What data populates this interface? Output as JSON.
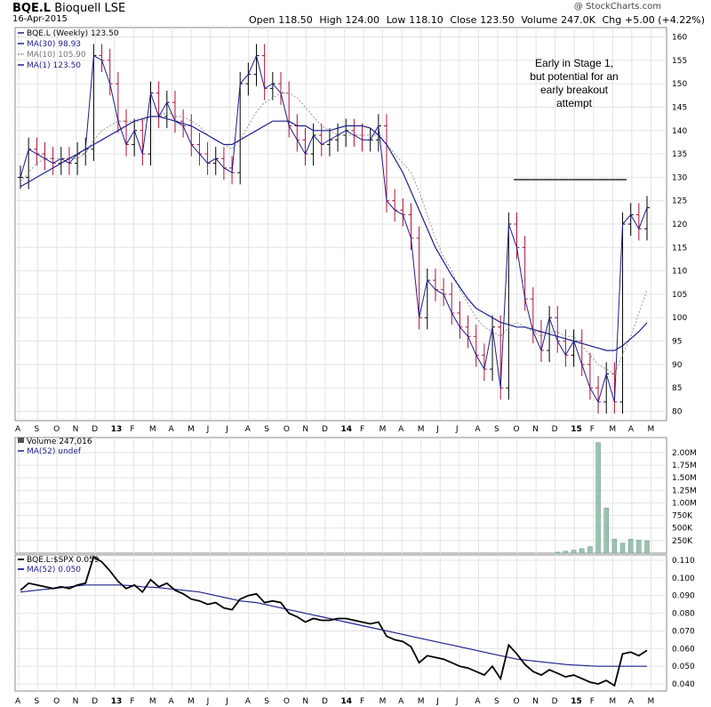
{
  "header": {
    "ticker": "BQE.L",
    "name": "Bioquell",
    "exchange": "LSE",
    "date": "16-Apr-2015",
    "open_label": "Open",
    "open": "118.50",
    "high_label": "High",
    "high": "124.00",
    "low_label": "Low",
    "low": "118.10",
    "close_label": "Close",
    "close": "123.50",
    "volume_label": "Volume",
    "volume": "247.0K",
    "chg_label": "Chg",
    "chg": "+5.00 (+4.22%)",
    "copyright": "@ StockCharts.com"
  },
  "colors": {
    "up_bar": "#000000",
    "down_bar": "#b0103a",
    "ma30": "#1f1f8f",
    "ma10": "#999999",
    "volume": "#9cc2b0",
    "ratio": "#000000",
    "grid": "#e3e3e3"
  },
  "chart_data": [
    {
      "type": "ohlc",
      "legend": [
        {
          "label": "BQE.L (Weekly) 123.50",
          "icon": "ohlc-icon"
        },
        {
          "label": "MA(30) 98.93",
          "icon": "line-solid"
        },
        {
          "label": "MA(10) 105.90",
          "icon": "line-dotted"
        },
        {
          "label": "MA(1) 123.50",
          "icon": "line-solid"
        }
      ],
      "ylim": [
        78,
        162
      ],
      "yticks": [
        80,
        85,
        90,
        95,
        100,
        105,
        110,
        115,
        120,
        125,
        130,
        135,
        140,
        145,
        150,
        155,
        160
      ],
      "x_months": [
        "A",
        "S",
        "O",
        "N",
        "D",
        "13",
        "F",
        "M",
        "A",
        "M",
        "J",
        "J",
        "A",
        "S",
        "O",
        "N",
        "D",
        "14",
        "F",
        "M",
        "A",
        "M",
        "J",
        "J",
        "A",
        "S",
        "O",
        "N",
        "D",
        "15",
        "F",
        "M",
        "A",
        "M"
      ],
      "price_close": [
        130,
        136,
        135,
        134,
        133,
        134,
        133,
        135,
        136,
        156,
        155,
        150,
        142,
        137,
        140,
        135,
        148,
        143,
        146,
        142,
        141,
        137,
        135,
        133,
        134,
        132,
        131,
        150,
        152,
        156,
        149,
        150,
        148,
        141,
        138,
        135,
        139,
        137,
        138,
        139,
        140,
        139,
        138,
        138,
        141,
        125,
        123,
        122,
        117,
        100,
        108,
        106,
        105,
        101,
        98,
        96,
        92,
        89,
        98,
        85,
        120,
        115,
        104,
        97,
        93,
        100,
        95,
        92,
        95,
        90,
        85,
        82,
        88,
        82,
        120,
        122,
        119,
        123.5
      ],
      "ma30": [
        128,
        129,
        130,
        131,
        132,
        133,
        134,
        135,
        136,
        137,
        138,
        139,
        140,
        141,
        142,
        142.5,
        143,
        143,
        142.5,
        142,
        141.5,
        141,
        140,
        139,
        138,
        137,
        137,
        138,
        139,
        140,
        141,
        142,
        142,
        142,
        141,
        141,
        140,
        140,
        140,
        140.5,
        141,
        141,
        141,
        140.5,
        139,
        137,
        134,
        131,
        127,
        123,
        119,
        115,
        112,
        109,
        106.5,
        104,
        102,
        101,
        100,
        99,
        98.5,
        98,
        98,
        97.5,
        97,
        96.5,
        96,
        95.5,
        95,
        94.5,
        94,
        93.5,
        93,
        93,
        94,
        95.5,
        97,
        98.93
      ],
      "ma10": [
        129,
        131,
        133,
        134,
        134,
        134,
        134,
        134,
        135,
        138,
        140,
        141,
        142,
        142,
        142,
        142,
        143,
        143,
        144,
        143,
        143,
        142,
        141,
        139,
        138,
        137,
        136,
        138,
        141,
        144,
        146,
        147,
        148,
        148,
        147,
        145,
        143,
        141,
        140,
        139,
        139,
        139,
        139,
        139,
        139,
        137,
        135,
        133,
        131,
        127,
        122,
        117,
        113,
        110,
        106,
        103,
        100,
        98,
        97,
        96,
        98,
        99,
        98,
        97,
        96,
        97,
        97,
        96,
        96,
        94,
        92,
        90,
        89,
        88,
        92,
        96,
        101,
        105.9
      ]
    },
    {
      "type": "bar",
      "legend": [
        {
          "label": "Volume 247,016",
          "icon": "volume-icon"
        },
        {
          "label": "MA(52) undef",
          "icon": "line-solid"
        }
      ],
      "ylim": [
        0,
        2300000
      ],
      "yticks": [
        250000,
        500000,
        750000,
        1000000,
        1250000,
        1500000,
        1750000,
        2000000
      ],
      "ytick_labels": [
        "250K",
        "500K",
        "750K",
        "1.00M",
        "1.25M",
        "1.50M",
        "1.75M",
        "2.00M"
      ],
      "values": [
        20000,
        40000,
        60000,
        90000,
        130000,
        2200000,
        900000,
        280000,
        200000,
        280000,
        260000,
        247016
      ]
    },
    {
      "type": "line",
      "legend": [
        {
          "label": "BQE.L:$SPX 0.059",
          "icon": "line-solid"
        },
        {
          "label": "MA(52) 0.050",
          "icon": "line-solid"
        }
      ],
      "ylim": [
        0.036,
        0.113
      ],
      "yticks": [
        0.04,
        0.05,
        0.06,
        0.07,
        0.08,
        0.09,
        0.1,
        0.11
      ],
      "ytick_labels": [
        "0.040",
        "0.050",
        "0.060",
        "0.070",
        "0.080",
        "0.090",
        "0.100",
        "0.110"
      ],
      "ratio": [
        0.093,
        0.097,
        0.096,
        0.095,
        0.094,
        0.095,
        0.094,
        0.096,
        0.097,
        0.112,
        0.109,
        0.104,
        0.098,
        0.094,
        0.096,
        0.092,
        0.099,
        0.095,
        0.097,
        0.093,
        0.091,
        0.088,
        0.087,
        0.085,
        0.086,
        0.083,
        0.082,
        0.088,
        0.09,
        0.091,
        0.086,
        0.087,
        0.086,
        0.08,
        0.078,
        0.075,
        0.077,
        0.076,
        0.076,
        0.077,
        0.077,
        0.076,
        0.075,
        0.074,
        0.075,
        0.067,
        0.065,
        0.064,
        0.061,
        0.052,
        0.056,
        0.055,
        0.054,
        0.052,
        0.05,
        0.049,
        0.047,
        0.045,
        0.05,
        0.043,
        0.062,
        0.057,
        0.051,
        0.047,
        0.045,
        0.048,
        0.046,
        0.044,
        0.045,
        0.043,
        0.041,
        0.04,
        0.042,
        0.039,
        0.057,
        0.058,
        0.056,
        0.059
      ],
      "ma52": [
        0.092,
        0.0925,
        0.093,
        0.0935,
        0.094,
        0.0945,
        0.095,
        0.0955,
        0.096,
        0.096,
        0.096,
        0.096,
        0.096,
        0.0958,
        0.0955,
        0.095,
        0.0948,
        0.0945,
        0.094,
        0.0935,
        0.093,
        0.0925,
        0.092,
        0.091,
        0.09,
        0.089,
        0.088,
        0.087,
        0.0865,
        0.086,
        0.085,
        0.084,
        0.083,
        0.082,
        0.081,
        0.08,
        0.079,
        0.078,
        0.077,
        0.076,
        0.075,
        0.074,
        0.073,
        0.072,
        0.071,
        0.07,
        0.069,
        0.068,
        0.067,
        0.066,
        0.065,
        0.064,
        0.063,
        0.062,
        0.061,
        0.06,
        0.059,
        0.058,
        0.057,
        0.056,
        0.055,
        0.054,
        0.0535,
        0.053,
        0.0525,
        0.052,
        0.0515,
        0.051,
        0.0507,
        0.0505,
        0.0502,
        0.05,
        0.05,
        0.05,
        0.05,
        0.05,
        0.05,
        0.05
      ]
    }
  ],
  "annotation": {
    "lines": [
      "Early in Stage 1,",
      "but potential for an",
      "early breakout",
      "attempt"
    ],
    "resistance_level": 129.5
  }
}
